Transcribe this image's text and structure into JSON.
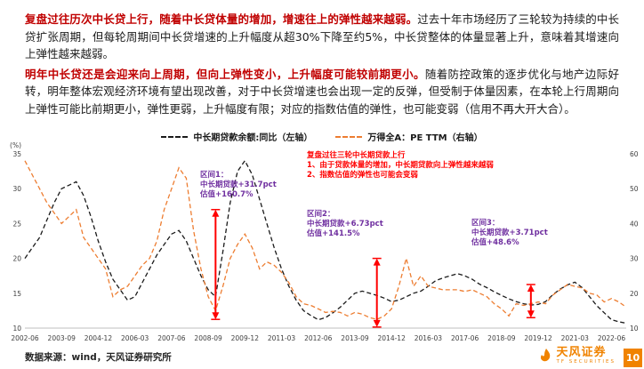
{
  "page": {
    "paragraphs": [
      {
        "lead": "复盘过往历次中长贷上行，随着中长贷体量的增加，增速往上的弹性越来越弱。",
        "body": "过去十年市场经历了三轮较为持续的中长贷扩张周期，但每轮周期间中长贷增速的上升幅度从超30%下降至约5%，中长贷整体的体量显著上升，意味着其增速向上弹性越来越弱。"
      },
      {
        "lead": "明年中长贷还是会迎来向上周期，但向上弹性变小，上升幅度可能较前期更小。",
        "body": "随着防控政策的逐步优化与地产边际好转，明年整体宏观经济环境有望出现改善，对于中长贷增速也会出现一定的反弹，但受制于体量因素，在本轮上行周期向上弹性可能比前期更小，弹性更弱，上升幅度有限；对应的指数估值的弹性，也可能变弱（信用不再大开大合）。"
      }
    ],
    "footer": {
      "source": "数据来源：wind，天风证券研究所"
    },
    "brand": {
      "name": "天风证券",
      "subtitle": "TF SECURITIES",
      "page_number": "10",
      "accent": "#f08300"
    }
  },
  "chart_data": {
    "type": "line",
    "title": "",
    "legend": [
      {
        "label": "中长期贷款余额:同比（左轴）",
        "color": "#1a1a1a",
        "dash": true
      },
      {
        "label": "万得全A：PE TTM（右轴）",
        "color": "#ed7d31",
        "dash": true
      }
    ],
    "left_axis": {
      "label": "(%)",
      "min": 10,
      "max": 35,
      "ticks": [
        35,
        30,
        25,
        20,
        15,
        10
      ]
    },
    "right_axis": {
      "min": 10,
      "max": 60,
      "ticks": [
        60,
        50,
        40,
        30,
        20,
        10
      ]
    },
    "x_axis": {
      "start": "2002-06",
      "end": "2022-12",
      "month_max": 246,
      "tick_months": [
        0,
        15,
        30,
        45,
        60,
        75,
        90,
        105,
        120,
        135,
        150,
        165,
        180,
        195,
        210,
        225,
        240
      ],
      "tick_labels": [
        "2002-06",
        "2003-09",
        "2004-12",
        "2006-03",
        "2007-06",
        "2008-09",
        "2009-12",
        "2011-03",
        "2012-06",
        "2013-09",
        "2014-12",
        "2016-03",
        "2017-06",
        "2018-09",
        "2019-12",
        "2021-03",
        "2022-06"
      ]
    },
    "series": [
      {
        "name": "中长期贷款余额:同比",
        "axis": "left",
        "color": "#1a1a1a",
        "step_months": 3,
        "values": [
          20.0,
          21.5,
          23.0,
          25.5,
          28.0,
          30.0,
          30.5,
          31.0,
          29.0,
          26.0,
          22.5,
          19.5,
          17.0,
          15.5,
          14.0,
          14.5,
          16.5,
          18.5,
          20.5,
          22.0,
          23.5,
          24.0,
          22.5,
          20.0,
          17.5,
          15.5,
          14.5,
          21.0,
          28.0,
          32.5,
          34.0,
          32.0,
          28.5,
          25.0,
          21.5,
          18.5,
          16.0,
          14.0,
          12.5,
          11.8,
          11.2,
          11.5,
          12.2,
          13.0,
          14.0,
          15.0,
          15.3,
          15.0,
          14.7,
          14.3,
          13.8,
          14.0,
          14.5,
          15.0,
          15.3,
          16.0,
          16.8,
          17.2,
          17.5,
          17.8,
          17.5,
          17.0,
          16.3,
          15.8,
          15.2,
          14.7,
          14.2,
          13.8,
          13.5,
          13.3,
          13.4,
          13.8,
          14.8,
          15.6,
          16.2,
          16.6,
          15.8,
          14.5,
          13.2,
          12.2,
          11.2,
          10.9,
          10.7
        ]
      },
      {
        "name": "万得全A PE TTM",
        "axis": "right",
        "color": "#ed7d31",
        "step_months": 3,
        "values": [
          58,
          54,
          50,
          46,
          43,
          40,
          42,
          44,
          36,
          33,
          30,
          27,
          19,
          21,
          22,
          25,
          28,
          30,
          35,
          44,
          50,
          56,
          53,
          38,
          27,
          19,
          15,
          22,
          30,
          34,
          37,
          33,
          27,
          29,
          28,
          26,
          23,
          19,
          17,
          16.5,
          15.5,
          14.5,
          14.8,
          14.5,
          13.5,
          14.5,
          14.0,
          13.0,
          12.5,
          13.5,
          15.5,
          22,
          30,
          22,
          25,
          22,
          21.5,
          21,
          21,
          21,
          20.5,
          21,
          20,
          19,
          17,
          15.5,
          13.5,
          17,
          16.5,
          17,
          17.5,
          17,
          19.5,
          21,
          22.5,
          22,
          21.5,
          20,
          19.5,
          17.5,
          18.5,
          17.5,
          16
        ]
      }
    ],
    "arrows": [
      {
        "month": 78,
        "from": 12.5,
        "to": 44,
        "color": "#ff0000"
      },
      {
        "month": 144,
        "from": 10.3,
        "to": 30,
        "color": "#ff0000"
      },
      {
        "month": 207,
        "from": 13,
        "to": 22.5,
        "color": "#ff0000"
      }
    ],
    "annotations": {
      "headline": {
        "color": "#ff0000",
        "lines": [
          "复盘过往三轮中长期贷款上行",
          "1、由于贷款体量的增加，中长期贷款向上弹性越来越弱",
          "2、指数估值的弹性也可能会变弱"
        ]
      },
      "intervals": [
        {
          "title": "区间1：",
          "line1": "中长期贷款+31.7pct",
          "line2": "估值+160.7%"
        },
        {
          "title": "区间2：",
          "line1": "中长期贷款+6.73pct",
          "line2": "估值+141.5%"
        },
        {
          "title": "区间3：",
          "line1": "中长期贷款+3.71pct",
          "line2": "估值+48.6%"
        }
      ]
    }
  }
}
